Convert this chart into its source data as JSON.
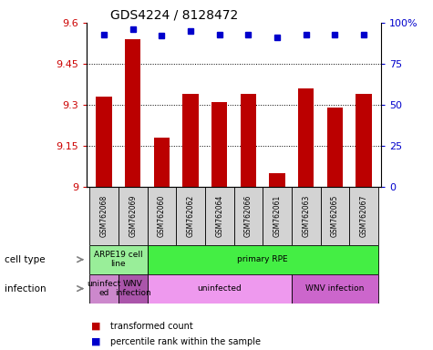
{
  "title": "GDS4224 / 8128472",
  "samples": [
    "GSM762068",
    "GSM762069",
    "GSM762060",
    "GSM762062",
    "GSM762064",
    "GSM762066",
    "GSM762061",
    "GSM762063",
    "GSM762065",
    "GSM762067"
  ],
  "transformed_counts": [
    9.33,
    9.54,
    9.18,
    9.34,
    9.31,
    9.34,
    9.05,
    9.36,
    9.29,
    9.34
  ],
  "percentile_ranks": [
    93,
    96,
    92,
    95,
    93,
    93,
    91,
    93,
    93,
    93
  ],
  "ylim_left": [
    9.0,
    9.6
  ],
  "ylim_right": [
    0,
    100
  ],
  "yticks_left": [
    9.0,
    9.15,
    9.3,
    9.45,
    9.6
  ],
  "ytick_labels_left": [
    "9",
    "9.15",
    "9.3",
    "9.45",
    "9.6"
  ],
  "yticks_right": [
    0,
    25,
    50,
    75,
    100
  ],
  "ytick_labels_right": [
    "0",
    "25",
    "50",
    "75",
    "100%"
  ],
  "bar_color": "#bb0000",
  "dot_color": "#0000cc",
  "grid_color": "#000000",
  "sample_box_color": "#d3d3d3",
  "cell_type_groups": [
    {
      "label": "ARPE19 cell\nline",
      "start": 0,
      "end": 2,
      "color": "#99ee99"
    },
    {
      "label": "primary RPE",
      "start": 2,
      "end": 10,
      "color": "#44ee44"
    }
  ],
  "infection_groups": [
    {
      "label": "uninfect\ned",
      "start": 0,
      "end": 1,
      "color": "#cc88cc"
    },
    {
      "label": "WNV\ninfection",
      "start": 1,
      "end": 2,
      "color": "#aa55aa"
    },
    {
      "label": "uninfected",
      "start": 2,
      "end": 7,
      "color": "#ee99ee"
    },
    {
      "label": "WNV infection",
      "start": 7,
      "end": 10,
      "color": "#cc66cc"
    }
  ],
  "legend_red_label": "transformed count",
  "legend_blue_label": "percentile rank within the sample",
  "cell_type_row_label": "cell type",
  "infection_row_label": "infection"
}
